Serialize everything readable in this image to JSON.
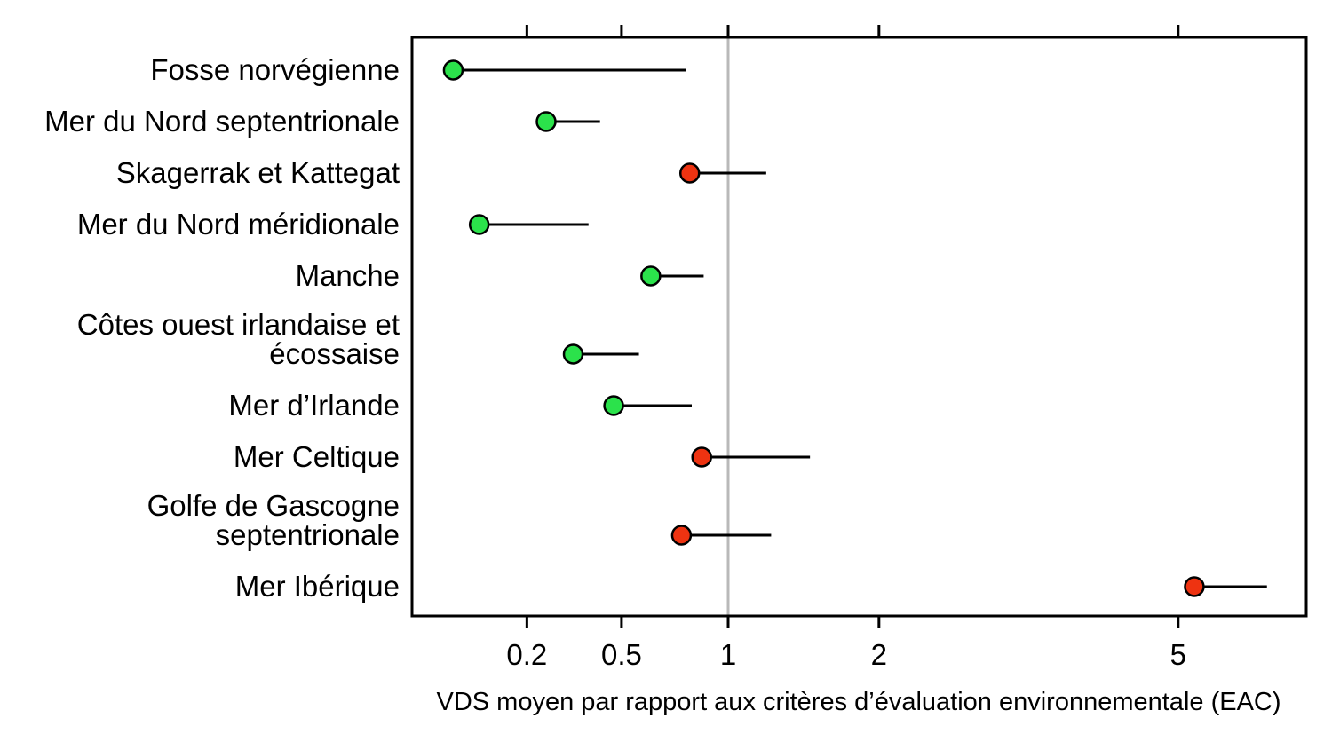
{
  "chart_data": {
    "type": "scatter",
    "variant": "horizontal-dot-plot-with-upper-whisker",
    "title": "",
    "xlabel": "VDS moyen par rapport aux critères d’évaluation environnementale (EAC)",
    "ylabel": "",
    "x_scale": "sqrt",
    "x_axis_range": [
      0.017,
      6.7
    ],
    "x_ticks": [
      0.2,
      0.5,
      1,
      2,
      5
    ],
    "x_tick_labels": [
      "0.2",
      "0.5",
      "1",
      "2",
      "5"
    ],
    "reference_line_x": 1,
    "grid": false,
    "legend": "none",
    "rows": [
      {
        "label": "Fosse norvégienne",
        "label_lines": [
          "Fosse norvégienne"
        ],
        "value": 0.06,
        "upper": 0.78,
        "status": "below-EAC"
      },
      {
        "label": "Mer du Nord septentrionale",
        "label_lines": [
          "Mer du Nord septentrionale"
        ],
        "value": 0.25,
        "upper": 0.42,
        "status": "below-EAC"
      },
      {
        "label": "Skagerrak et Kattegat",
        "label_lines": [
          "Skagerrak et Kattegat"
        ],
        "value": 0.8,
        "upper": 1.22,
        "status": "near-or-above-EAC"
      },
      {
        "label": "Mer du Nord méridionale",
        "label_lines": [
          "Mer du Nord méridionale"
        ],
        "value": 0.1,
        "upper": 0.38,
        "status": "below-EAC"
      },
      {
        "label": "Manche",
        "label_lines": [
          "Manche"
        ],
        "value": 0.62,
        "upper": 0.87,
        "status": "below-EAC"
      },
      {
        "label": "Côtes ouest irlandaise et écossaise",
        "label_lines": [
          "Côtes ouest irlandaise et",
          "écossaise"
        ],
        "value": 0.33,
        "upper": 0.57,
        "status": "below-EAC"
      },
      {
        "label": "Mer d’Irlande",
        "label_lines": [
          "Mer d’Irlande"
        ],
        "value": 0.47,
        "upper": 0.81,
        "status": "below-EAC"
      },
      {
        "label": "Mer Celtique",
        "label_lines": [
          "Mer Celtique"
        ],
        "value": 0.86,
        "upper": 1.5,
        "status": "near-or-above-EAC"
      },
      {
        "label": "Golfe de Gascogne septentrionale",
        "label_lines": [
          "Golfe de Gascogne",
          "septentrionale"
        ],
        "value": 0.76,
        "upper": 1.25,
        "status": "near-or-above-EAC"
      },
      {
        "label": "Mer Ibérique",
        "label_lines": [
          "Mer Ibérique"
        ],
        "value": 5.2,
        "upper": 6.15,
        "status": "near-or-above-EAC"
      }
    ]
  },
  "colors": {
    "status_below_EAC": "#2be24b",
    "status_near_or_above_EAC": "#ee3311",
    "marker_outline": "#000000",
    "whisker": "#000000",
    "reference_line": "#b9b9b9",
    "axis": "#000000",
    "background": "#ffffff"
  }
}
